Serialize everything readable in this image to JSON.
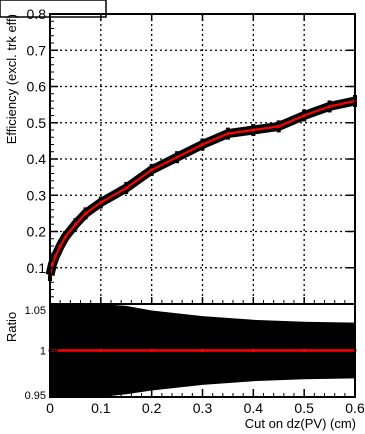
{
  "chart_data": [
    {
      "type": "line",
      "panel": "main",
      "ylabel": "Efficiency (excl. trk eff)",
      "xlim": [
        0,
        0.6
      ],
      "ylim": [
        0,
        0.8
      ],
      "x_ticks": [
        0,
        0.1,
        0.2,
        0.3,
        0.4,
        0.5,
        0.6
      ],
      "y_ticks": [
        0.1,
        0.2,
        0.3,
        0.4,
        0.5,
        0.6,
        0.7,
        0.8
      ],
      "y_tick_labels": [
        "0.1",
        "0.2",
        "0.3",
        "0.4",
        "0.5",
        "0.6",
        "0.7",
        "0.8"
      ],
      "grid": true,
      "series": [
        {
          "color": "#000000",
          "style": "thick error band",
          "x": [
            0,
            0.005,
            0.01,
            0.02,
            0.03,
            0.05,
            0.07,
            0.1,
            0.15,
            0.2,
            0.25,
            0.3,
            0.35,
            0.4,
            0.45,
            0.5,
            0.55,
            0.6
          ],
          "y": [
            0.08,
            0.11,
            0.13,
            0.16,
            0.185,
            0.22,
            0.25,
            0.28,
            0.32,
            0.37,
            0.405,
            0.44,
            0.47,
            0.48,
            0.49,
            0.52,
            0.545,
            0.56
          ]
        },
        {
          "color": "#ff0000",
          "style": "line",
          "x": [
            0,
            0.005,
            0.01,
            0.02,
            0.03,
            0.05,
            0.07,
            0.1,
            0.15,
            0.2,
            0.25,
            0.3,
            0.35,
            0.4,
            0.45,
            0.5,
            0.55,
            0.6
          ],
          "y": [
            0.08,
            0.11,
            0.13,
            0.16,
            0.185,
            0.22,
            0.25,
            0.28,
            0.32,
            0.37,
            0.405,
            0.44,
            0.47,
            0.48,
            0.49,
            0.52,
            0.545,
            0.56
          ]
        }
      ]
    },
    {
      "type": "area",
      "panel": "ratio",
      "xlabel": "Cut on dz(PV) (cm)",
      "ylabel": "Ratio",
      "xlim": [
        0,
        0.6
      ],
      "ylim": [
        0.95,
        1.05
      ],
      "x_ticks": [
        0,
        0.1,
        0.2,
        0.3,
        0.4,
        0.5,
        0.6
      ],
      "x_tick_labels": [
        "0",
        "0.1",
        "0.2",
        "0.3",
        "0.4",
        "0.5",
        "0.6"
      ],
      "y_ticks": [
        0.95,
        1,
        1.05
      ],
      "y_tick_labels": [
        "0.95",
        "1",
        "1.05"
      ],
      "band": {
        "color": "#000000",
        "x": [
          0,
          0.05,
          0.1,
          0.15,
          0.2,
          0.3,
          0.4,
          0.5,
          0.6
        ],
        "upper": [
          1.05,
          1.05,
          1.05,
          1.048,
          1.043,
          1.037,
          1.033,
          1.031,
          1.03
        ],
        "lower": [
          0.95,
          0.95,
          0.95,
          0.953,
          0.957,
          0.963,
          0.967,
          0.969,
          0.97
        ]
      },
      "series": [
        {
          "color": "#ff0000",
          "style": "line",
          "x": [
            0,
            0.1,
            0.2,
            0.3,
            0.4,
            0.5,
            0.6
          ],
          "y": [
            1.0,
            1.0,
            1.0,
            1.0,
            1.0,
            1.0,
            1.0
          ]
        }
      ]
    }
  ]
}
